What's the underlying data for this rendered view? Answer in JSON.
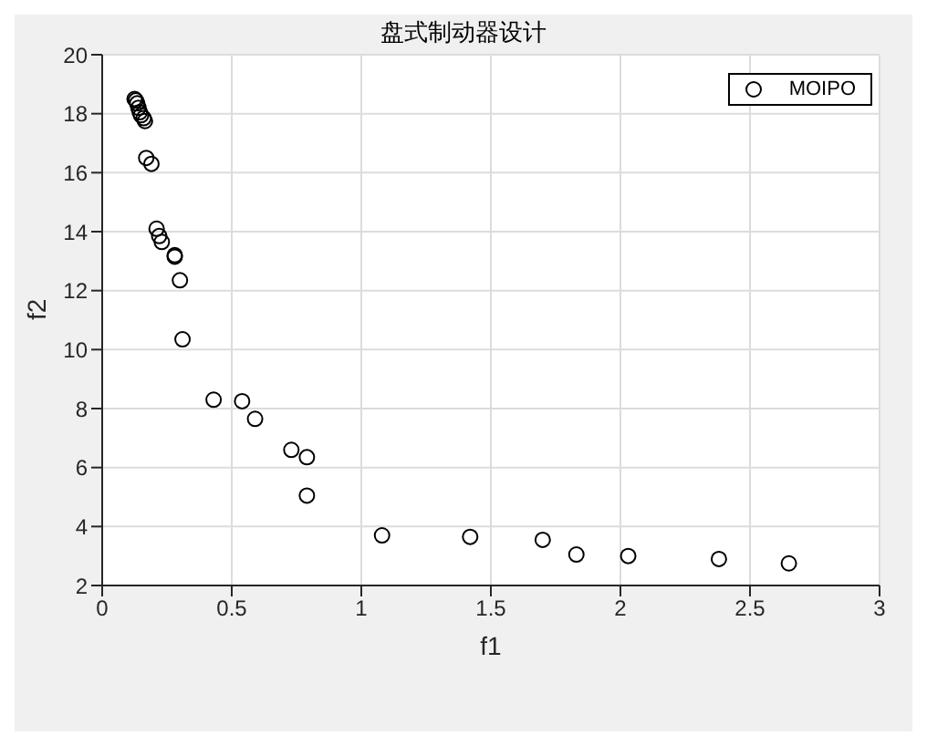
{
  "chart_data": {
    "type": "scatter",
    "title": "盘式制动器设计",
    "xlabel": "f1",
    "ylabel": "f2",
    "xlim": [
      0,
      3
    ],
    "xticks": [
      0,
      0.5,
      1,
      1.5,
      2,
      2.5,
      3
    ],
    "ylim": [
      2,
      20
    ],
    "yticks": [
      2,
      4,
      6,
      8,
      10,
      12,
      14,
      16,
      18,
      20
    ],
    "grid": true,
    "legend": "top right",
    "marker": "circle",
    "series": [
      {
        "name": "MOIPO",
        "color": "#000000",
        "x": [
          0.125,
          0.13,
          0.135,
          0.14,
          0.145,
          0.15,
          0.16,
          0.165,
          0.17,
          0.19,
          0.21,
          0.22,
          0.23,
          0.28,
          0.28,
          0.3,
          0.31,
          0.43,
          0.54,
          0.59,
          0.73,
          0.79,
          0.79,
          1.08,
          1.42,
          1.7,
          1.83,
          2.03,
          2.38,
          2.65
        ],
        "values": [
          18.5,
          18.45,
          18.35,
          18.2,
          18.05,
          17.95,
          17.85,
          17.75,
          16.5,
          16.3,
          14.1,
          13.85,
          13.65,
          13.2,
          13.15,
          12.35,
          10.35,
          8.3,
          8.25,
          7.65,
          6.6,
          6.35,
          5.05,
          3.7,
          3.65,
          3.55,
          3.05,
          3.0,
          2.9,
          2.75
        ]
      }
    ]
  }
}
